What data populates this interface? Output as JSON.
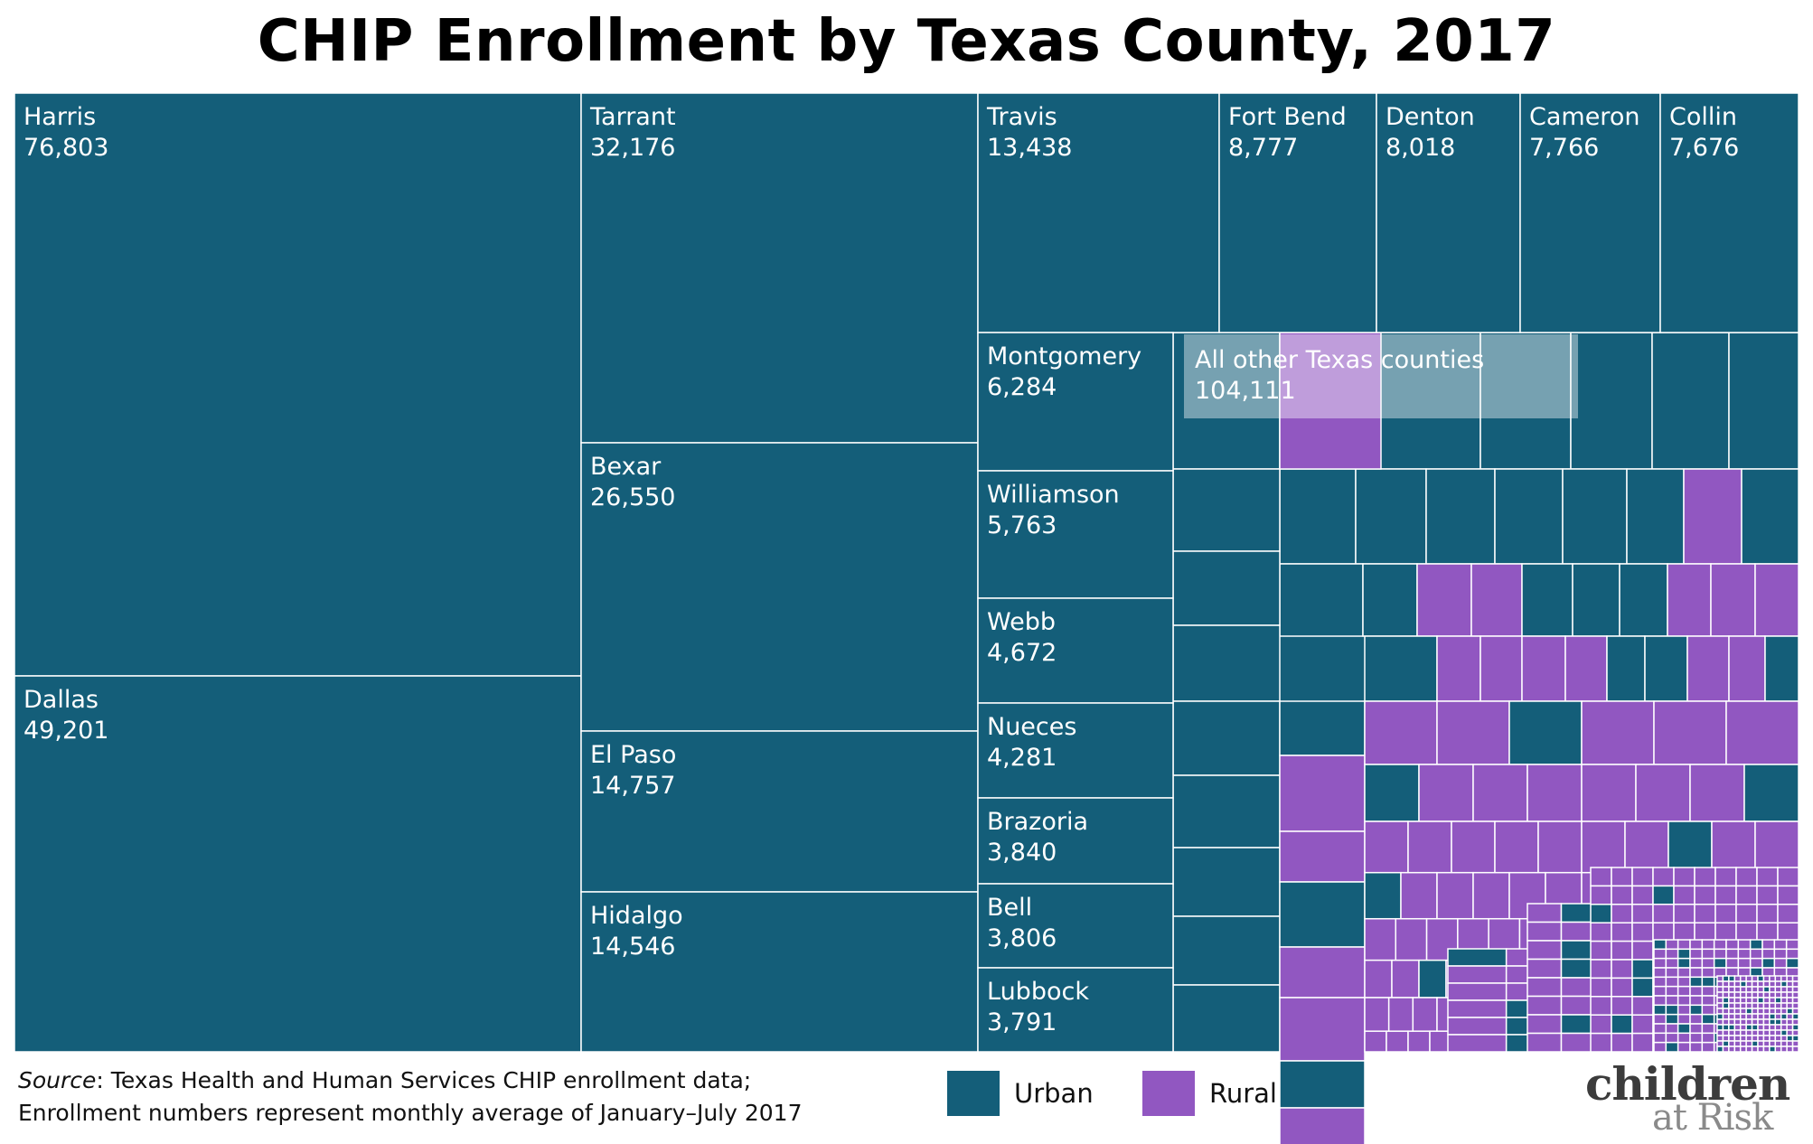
{
  "title": "CHIP Enrollment by Texas County, 2017",
  "colors": {
    "urban": "#145e79",
    "rural": "#9157c1",
    "background": "#ffffff"
  },
  "chart_data": {
    "type": "treemap",
    "title": "CHIP Enrollment by Texas County, 2017",
    "legend": [
      {
        "label": "Urban",
        "color": "#145e79"
      },
      {
        "label": "Rural",
        "color": "#9157c1"
      }
    ],
    "series": [
      {
        "name": "Harris",
        "value": 76803,
        "type": "urban",
        "label_value": "76,803"
      },
      {
        "name": "Dallas",
        "value": 49201,
        "type": "urban",
        "label_value": "49,201"
      },
      {
        "name": "Tarrant",
        "value": 32176,
        "type": "urban",
        "label_value": "32,176"
      },
      {
        "name": "Bexar",
        "value": 26550,
        "type": "urban",
        "label_value": "26,550"
      },
      {
        "name": "El Paso",
        "value": 14757,
        "type": "urban",
        "label_value": "14,757"
      },
      {
        "name": "Hidalgo",
        "value": 14546,
        "type": "urban",
        "label_value": "14,546"
      },
      {
        "name": "Travis",
        "value": 13438,
        "type": "urban",
        "label_value": "13,438"
      },
      {
        "name": "Fort Bend",
        "value": 8777,
        "type": "urban",
        "label_value": "8,777"
      },
      {
        "name": "Denton",
        "value": 8018,
        "type": "urban",
        "label_value": "8,018"
      },
      {
        "name": "Cameron",
        "value": 7766,
        "type": "urban",
        "label_value": "7,766"
      },
      {
        "name": "Collin",
        "value": 7676,
        "type": "urban",
        "label_value": "7,676"
      },
      {
        "name": "Montgomery",
        "value": 6284,
        "type": "urban",
        "label_value": "6,284"
      },
      {
        "name": "Williamson",
        "value": 5763,
        "type": "urban",
        "label_value": "5,763"
      },
      {
        "name": "Webb",
        "value": 4672,
        "type": "urban",
        "label_value": "4,672"
      },
      {
        "name": "Nueces",
        "value": 4281,
        "type": "urban",
        "label_value": "4,281"
      },
      {
        "name": "Brazoria",
        "value": 3840,
        "type": "urban",
        "label_value": "3,840"
      },
      {
        "name": "Bell",
        "value": 3806,
        "type": "urban",
        "label_value": "3,806"
      },
      {
        "name": "Lubbock",
        "value": 3791,
        "type": "urban",
        "label_value": "3,791"
      }
    ],
    "other": {
      "name": "All other Texas counties",
      "value": 104111,
      "label_value": "104,111"
    }
  },
  "footer": {
    "source_word": "Source",
    "source_rest": ": Texas Health and Human Services CHIP enrollment data;",
    "note": "Enrollment numbers represent monthly average of January–July 2017"
  },
  "logo": {
    "line1": "children",
    "line2": "at Risk"
  }
}
